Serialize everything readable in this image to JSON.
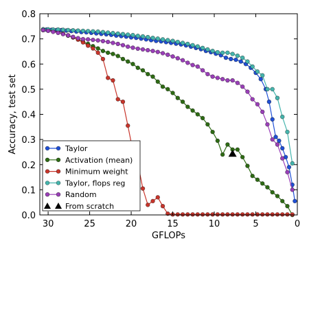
{
  "chart_data": {
    "type": "line",
    "xlabel": "GFLOPs",
    "ylabel": "Accuracy, test set",
    "xlim": [
      31,
      0
    ],
    "ylim": [
      0,
      0.8
    ],
    "x_reversed": true,
    "xticks": [
      30,
      25,
      20,
      15,
      10,
      5,
      0
    ],
    "yticks": [
      0.0,
      0.1,
      0.2,
      0.3,
      0.4,
      0.5,
      0.6,
      0.7,
      0.8
    ],
    "grid": false,
    "legend_position": "lower-left",
    "series": [
      {
        "name": "Taylor",
        "color": "#1f4fd6",
        "marker": "circle",
        "x": [
          30.6,
          30.2,
          29.6,
          29.0,
          28.4,
          27.8,
          27.2,
          26.6,
          26.0,
          25.4,
          24.8,
          24.2,
          23.6,
          23.0,
          22.4,
          21.8,
          21.2,
          20.6,
          20.0,
          19.4,
          18.8,
          18.2,
          17.6,
          17.0,
          16.4,
          15.8,
          15.2,
          14.6,
          14.0,
          13.4,
          12.8,
          12.2,
          11.6,
          11.0,
          10.4,
          9.8,
          9.2,
          8.6,
          8.0,
          7.4,
          6.8,
          6.2,
          5.6,
          5.0,
          4.4,
          3.8,
          3.4,
          3.0,
          2.6,
          2.2,
          1.8,
          1.4,
          1.0,
          0.6,
          0.3
        ],
        "y": [
          0.735,
          0.737,
          0.736,
          0.735,
          0.735,
          0.733,
          0.731,
          0.729,
          0.727,
          0.726,
          0.724,
          0.722,
          0.72,
          0.718,
          0.716,
          0.713,
          0.711,
          0.709,
          0.706,
          0.704,
          0.701,
          0.698,
          0.695,
          0.692,
          0.69,
          0.687,
          0.684,
          0.681,
          0.678,
          0.674,
          0.669,
          0.664,
          0.659,
          0.652,
          0.647,
          0.641,
          0.635,
          0.625,
          0.62,
          0.617,
          0.61,
          0.6,
          0.585,
          0.565,
          0.54,
          0.5,
          0.45,
          0.38,
          0.31,
          0.295,
          0.265,
          0.23,
          0.19,
          0.12,
          0.055
        ]
      },
      {
        "name": "Activation (mean)",
        "color": "#2e6b14",
        "marker": "circle",
        "x": [
          30.6,
          30.0,
          29.4,
          28.8,
          28.2,
          27.6,
          27.0,
          26.4,
          25.8,
          25.2,
          24.6,
          24.0,
          23.4,
          22.8,
          22.2,
          21.6,
          21.0,
          20.4,
          19.8,
          19.2,
          18.6,
          18.0,
          17.4,
          16.8,
          16.2,
          15.6,
          15.0,
          14.4,
          13.8,
          13.2,
          12.6,
          12.0,
          11.4,
          10.8,
          10.2,
          9.6,
          9.0,
          8.4,
          7.8,
          7.2,
          6.6,
          6.0,
          5.4,
          4.8,
          4.2,
          3.6,
          3.0,
          2.4,
          1.8,
          1.2,
          0.6
        ],
        "y": [
          0.738,
          0.735,
          0.731,
          0.726,
          0.72,
          0.713,
          0.706,
          0.698,
          0.689,
          0.68,
          0.671,
          0.662,
          0.652,
          0.645,
          0.64,
          0.632,
          0.62,
          0.61,
          0.6,
          0.585,
          0.575,
          0.56,
          0.55,
          0.53,
          0.51,
          0.5,
          0.485,
          0.465,
          0.45,
          0.43,
          0.415,
          0.4,
          0.385,
          0.36,
          0.33,
          0.295,
          0.24,
          0.28,
          0.26,
          0.26,
          0.23,
          0.195,
          0.155,
          0.14,
          0.125,
          0.11,
          0.09,
          0.075,
          0.055,
          0.035,
          0.0
        ]
      },
      {
        "name": "Minimum weight",
        "color": "#c8352b",
        "marker": "circle",
        "x": [
          30.6,
          30.0,
          29.4,
          28.8,
          28.2,
          27.6,
          27.0,
          26.4,
          25.8,
          25.2,
          24.6,
          24.0,
          23.4,
          22.8,
          22.2,
          21.6,
          21.0,
          20.4,
          19.8,
          19.2,
          18.6,
          18.0,
          17.4,
          16.8,
          16.2,
          15.6,
          15.0,
          14.4,
          13.8,
          13.2,
          12.6,
          12.0,
          11.4,
          10.8,
          10.2,
          9.6,
          9.0,
          8.4,
          7.8,
          7.2,
          6.6,
          6.0,
          5.4,
          4.8,
          4.2,
          3.6,
          3.0,
          2.4,
          1.8,
          1.2,
          0.6
        ],
        "y": [
          0.735,
          0.733,
          0.73,
          0.726,
          0.72,
          0.714,
          0.706,
          0.697,
          0.686,
          0.673,
          0.662,
          0.645,
          0.62,
          0.545,
          0.535,
          0.46,
          0.45,
          0.355,
          0.255,
          0.205,
          0.105,
          0.04,
          0.055,
          0.07,
          0.035,
          0.005,
          0.002,
          0.002,
          0.002,
          0.002,
          0.002,
          0.002,
          0.002,
          0.002,
          0.002,
          0.002,
          0.002,
          0.002,
          0.002,
          0.002,
          0.002,
          0.002,
          0.002,
          0.002,
          0.002,
          0.002,
          0.002,
          0.002,
          0.002,
          0.002,
          0.002
        ]
      },
      {
        "name": "Taylor, flops reg",
        "color": "#45b5ad",
        "marker": "circle",
        "x": [
          30.6,
          30.0,
          29.4,
          28.8,
          28.2,
          27.6,
          27.0,
          26.4,
          25.8,
          25.2,
          24.6,
          24.0,
          23.4,
          22.8,
          22.2,
          21.6,
          21.0,
          20.4,
          19.8,
          19.2,
          18.6,
          18.0,
          17.4,
          16.8,
          16.2,
          15.6,
          15.0,
          14.4,
          13.8,
          13.2,
          12.6,
          12.0,
          11.4,
          10.8,
          10.2,
          9.6,
          9.0,
          8.4,
          7.8,
          7.2,
          6.6,
          6.0,
          5.4,
          4.8,
          4.2,
          3.6,
          3.0,
          2.4,
          1.8,
          1.2,
          0.6
        ],
        "y": [
          0.738,
          0.738,
          0.737,
          0.737,
          0.736,
          0.735,
          0.734,
          0.733,
          0.732,
          0.731,
          0.73,
          0.729,
          0.727,
          0.725,
          0.723,
          0.721,
          0.719,
          0.717,
          0.715,
          0.712,
          0.71,
          0.707,
          0.704,
          0.701,
          0.698,
          0.695,
          0.692,
          0.688,
          0.684,
          0.68,
          0.675,
          0.67,
          0.664,
          0.658,
          0.652,
          0.647,
          0.645,
          0.645,
          0.64,
          0.633,
          0.625,
          0.61,
          0.59,
          0.57,
          0.555,
          0.5,
          0.5,
          0.465,
          0.39,
          0.33,
          0.205
        ]
      },
      {
        "name": "Random",
        "color": "#9a3fb8",
        "marker": "circle",
        "x": [
          30.6,
          30.0,
          29.4,
          28.8,
          28.2,
          27.6,
          27.0,
          26.4,
          25.8,
          25.2,
          24.6,
          24.0,
          23.4,
          22.8,
          22.2,
          21.6,
          21.0,
          20.4,
          19.8,
          19.2,
          18.6,
          18.0,
          17.4,
          16.8,
          16.2,
          15.6,
          15.0,
          14.4,
          13.8,
          13.2,
          12.6,
          12.0,
          11.4,
          10.8,
          10.2,
          9.6,
          9.0,
          8.4,
          7.8,
          7.2,
          6.6,
          6.0,
          5.4,
          4.8,
          4.2,
          3.6,
          3.0,
          2.4,
          1.8,
          1.2,
          0.6
        ],
        "y": [
          0.735,
          0.732,
          0.728,
          0.724,
          0.719,
          0.714,
          0.708,
          0.703,
          0.699,
          0.698,
          0.696,
          0.694,
          0.691,
          0.688,
          0.684,
          0.68,
          0.675,
          0.669,
          0.665,
          0.661,
          0.658,
          0.655,
          0.652,
          0.648,
          0.643,
          0.637,
          0.63,
          0.623,
          0.615,
          0.605,
          0.596,
          0.59,
          0.575,
          0.56,
          0.55,
          0.545,
          0.54,
          0.535,
          0.535,
          0.525,
          0.51,
          0.49,
          0.46,
          0.44,
          0.41,
          0.36,
          0.3,
          0.28,
          0.225,
          0.17,
          0.1
        ]
      }
    ],
    "from_scratch": {
      "name": "From scratch",
      "color": "#000000",
      "marker": "triangle",
      "x": [
        7.8
      ],
      "y": [
        0.243
      ]
    }
  }
}
